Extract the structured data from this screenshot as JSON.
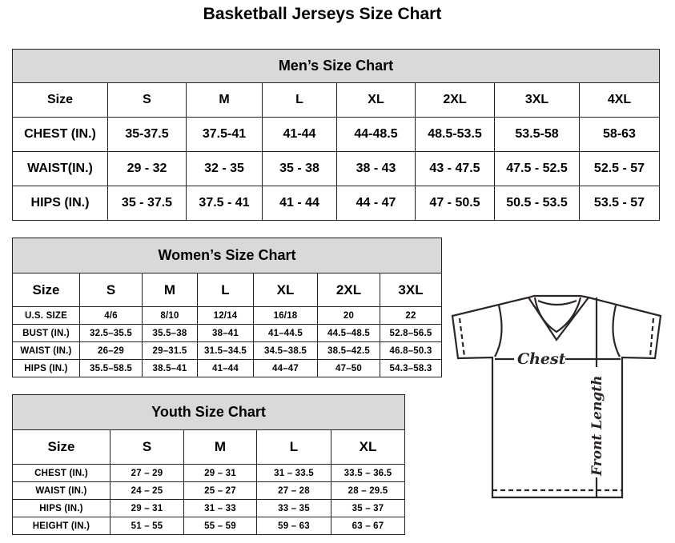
{
  "title": "Basketball Jerseys Size Chart",
  "men": {
    "caption": "Men’s Size Chart",
    "header": [
      "Size",
      "S",
      "M",
      "L",
      "XL",
      "2XL",
      "3XL",
      "4XL"
    ],
    "rows": [
      [
        "CHEST (IN.)",
        "35-37.5",
        "37.5-41",
        "41-44",
        "44-48.5",
        "48.5-53.5",
        "53.5-58",
        "58-63"
      ],
      [
        "WAIST(IN.)",
        "29 - 32",
        "32 - 35",
        "35 - 38",
        "38 - 43",
        "43 - 47.5",
        "47.5 - 52.5",
        "52.5 - 57"
      ],
      [
        "HIPS (IN.)",
        "35 - 37.5",
        "37.5 - 41",
        "41 - 44",
        "44 - 47",
        "47 - 50.5",
        "50.5 - 53.5",
        "53.5 - 57"
      ]
    ]
  },
  "women": {
    "caption": "Women’s Size Chart",
    "header": [
      "Size",
      "S",
      "M",
      "L",
      "XL",
      "2XL",
      "3XL"
    ],
    "rows": [
      [
        "U.S.  SIZE",
        "4/6",
        "8/10",
        "12/14",
        "16/18",
        "20",
        "22"
      ],
      [
        "BUST  (IN.)",
        "32.5–35.5",
        "35.5–38",
        "38–41",
        "41–44.5",
        "44.5–48.5",
        "52.8–56.5"
      ],
      [
        "WAIST  (IN.)",
        "26–29",
        "29–31.5",
        "31.5–34.5",
        "34.5–38.5",
        "38.5–42.5",
        "46.8–50.3"
      ],
      [
        "HIPS  (IN.)",
        "35.5–58.5",
        "38.5–41",
        "41–44",
        "44–47",
        "47–50",
        "54.3–58.3"
      ]
    ]
  },
  "youth": {
    "caption": "Youth Size Chart",
    "header": [
      "Size",
      "S",
      "M",
      "L",
      "XL"
    ],
    "rows": [
      [
        "CHEST  (IN.)",
        "27  –  29",
        "29  –  31",
        "31  –  33.5",
        "33.5  –  36.5"
      ],
      [
        "WAIST  (IN.)",
        "24  –  25",
        "25  –  27",
        "27  –  28",
        "28  –  29.5"
      ],
      [
        "HIPS  (IN.)",
        "29  –  31",
        "31  –  33",
        "33  –  35",
        "35  –  37"
      ],
      [
        "HEIGHT  (IN.)",
        "51  –  55",
        "55  –  59",
        "59  –  63",
        "63  –  67"
      ]
    ]
  },
  "diagram": {
    "chest_label": "Chest",
    "length_label": "Front Length"
  },
  "colors": {
    "caption_bg": "#d9d9d9",
    "line": "#2b2523"
  }
}
